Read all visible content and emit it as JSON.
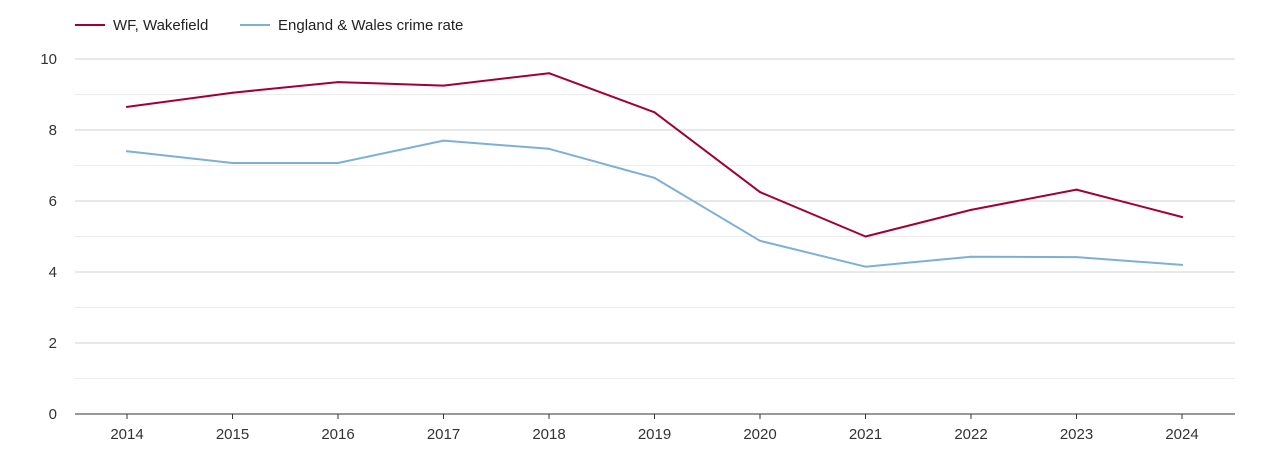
{
  "chart_data": {
    "type": "line",
    "title": "",
    "xlabel": "",
    "ylabel": "",
    "categories": [
      "2014",
      "2015",
      "2016",
      "2017",
      "2018",
      "2019",
      "2020",
      "2021",
      "2022",
      "2023",
      "2024"
    ],
    "ylim": [
      0,
      10
    ],
    "yticks": [
      0,
      2,
      4,
      6,
      8,
      10
    ],
    "grid": true,
    "legend_position": "top-left",
    "series": [
      {
        "name": "WF, Wakefield",
        "color": "#a0003a",
        "values": [
          8.65,
          9.05,
          9.35,
          9.25,
          9.6,
          8.5,
          6.25,
          5.0,
          5.75,
          6.32,
          5.55
        ]
      },
      {
        "name": "England & Wales crime rate",
        "color": "#7eb0d5",
        "values": [
          7.4,
          7.07,
          7.07,
          7.7,
          7.47,
          6.65,
          4.88,
          4.15,
          4.43,
          4.42,
          4.2
        ]
      }
    ]
  }
}
